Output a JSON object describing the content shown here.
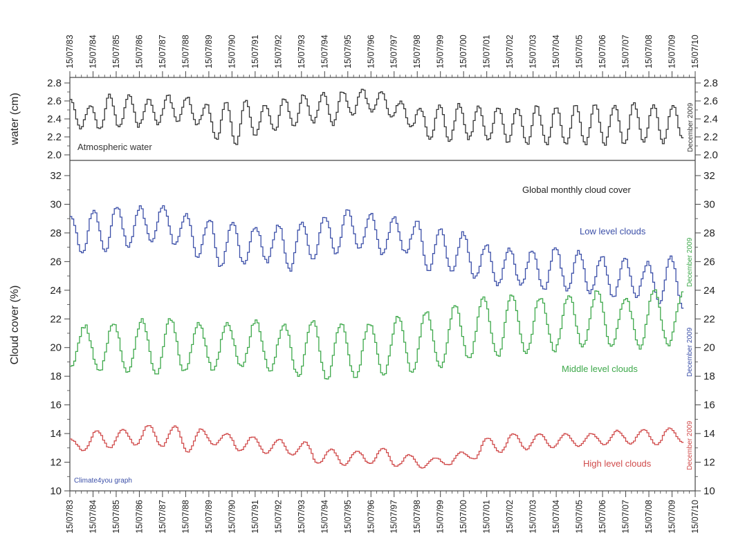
{
  "chart_data": [
    {
      "type": "line",
      "panel": "top",
      "ylabel": "water (cm)",
      "ylim": [
        2.0,
        2.8
      ],
      "yticks": [
        "2.0",
        "2.2",
        "2.4",
        "2.6",
        "2.8"
      ],
      "xlim": [
        "1983-07-15",
        "2010-07-15"
      ],
      "x_tick_labels": [
        "15/07/83",
        "15/07/84",
        "15/07/85",
        "15/07/86",
        "15/07/87",
        "15/07/88",
        "15/07/89",
        "15/07/90",
        "15/07/91",
        "15/07/92",
        "15/07/93",
        "15/07/94",
        "15/07/95",
        "15/07/96",
        "15/07/97",
        "15/07/98",
        "15/07/99",
        "15/07/00",
        "15/07/01",
        "15/07/02",
        "15/07/03",
        "15/07/04",
        "15/07/05",
        "15/07/06",
        "15/07/07",
        "15/07/08",
        "15/07/09",
        "15/07/10"
      ],
      "annotations": {
        "label": "Atmospheric water",
        "end_label": "December 2009"
      },
      "series": [
        {
          "name": "Atmospheric water",
          "color": "#333333",
          "x_start": "1983-07-15",
          "x_end": "2009-12-15",
          "anchors": [
            2.62,
            2.3,
            2.55,
            2.28,
            2.67,
            2.3,
            2.67,
            2.32,
            2.62,
            2.34,
            2.67,
            2.37,
            2.64,
            2.33,
            2.56,
            2.17,
            2.58,
            2.12,
            2.6,
            2.22,
            2.56,
            2.26,
            2.63,
            2.32,
            2.67,
            2.36,
            2.68,
            2.34,
            2.71,
            2.44,
            2.73,
            2.48,
            2.7,
            2.42,
            2.6,
            2.3,
            2.52,
            2.18,
            2.55,
            2.16,
            2.56,
            2.18,
            2.54,
            2.16,
            2.54,
            2.14,
            2.53,
            2.12,
            2.54,
            2.11,
            2.54,
            2.11,
            2.55,
            2.12,
            2.56,
            2.12,
            2.56,
            2.11,
            2.58,
            2.14,
            2.56,
            2.13,
            2.56,
            2.18
          ]
        }
      ]
    },
    {
      "type": "line",
      "panel": "bottom",
      "ylabel": "Cloud cover (%)",
      "ylim": [
        10,
        32
      ],
      "yticks": [
        "10",
        "12",
        "14",
        "16",
        "18",
        "20",
        "22",
        "24",
        "26",
        "28",
        "30",
        "32"
      ],
      "xlim": [
        "1983-07-15",
        "2010-07-15"
      ],
      "x_tick_labels": [
        "15/07/83",
        "15/07/84",
        "15/07/85",
        "15/07/86",
        "15/07/87",
        "15/07/88",
        "15/07/89",
        "15/07/90",
        "15/07/91",
        "15/07/92",
        "15/07/93",
        "15/07/94",
        "15/07/95",
        "15/07/96",
        "15/07/97",
        "15/07/98",
        "15/07/99",
        "15/07/00",
        "15/07/01",
        "15/07/02",
        "15/07/03",
        "15/07/04",
        "15/07/05",
        "15/07/06",
        "15/07/07",
        "15/07/08",
        "15/07/09",
        "15/07/10"
      ],
      "annotations": {
        "title": "Global monthly cloud cover",
        "credit": "Climate4you graph",
        "end_label_low": "December 2009",
        "end_label_middle": "December 2009",
        "end_label_high": "December 2009"
      },
      "series": [
        {
          "name": "Low level clouds",
          "color": "#3b4fa8",
          "x_start": "1983-07-15",
          "x_end": "2009-12-15",
          "anchors": [
            29.2,
            26.6,
            29.6,
            26.8,
            29.9,
            27.0,
            29.8,
            27.4,
            29.9,
            27.2,
            29.3,
            26.3,
            29.0,
            25.6,
            28.8,
            25.8,
            28.5,
            26.0,
            28.6,
            25.4,
            28.7,
            26.2,
            29.2,
            26.6,
            29.6,
            26.8,
            29.3,
            26.5,
            29.1,
            26.6,
            28.8,
            25.3,
            28.3,
            25.2,
            28.0,
            24.8,
            27.2,
            24.4,
            26.9,
            24.4,
            26.8,
            24.0,
            27.0,
            24.0,
            26.7,
            23.8,
            26.4,
            23.5,
            26.3,
            23.6,
            26.0,
            23.2,
            26.3,
            22.8
          ]
        },
        {
          "name": "Middle level clouds",
          "color": "#3da84a",
          "x_start": "1983-07-15",
          "x_end": "2009-12-15",
          "anchors": [
            18.7,
            21.5,
            18.3,
            21.7,
            18.2,
            21.9,
            18.1,
            22.0,
            18.3,
            21.7,
            18.4,
            21.8,
            18.6,
            21.9,
            18.4,
            21.6,
            18.0,
            21.9,
            17.8,
            21.7,
            17.9,
            21.7,
            18.1,
            22.1,
            18.3,
            22.5,
            18.6,
            22.9,
            19.2,
            23.4,
            19.4,
            23.6,
            19.6,
            23.5,
            19.8,
            23.6,
            20.1,
            24.0,
            20.1,
            23.5,
            20.0,
            24.0,
            20.2,
            23.8
          ]
        },
        {
          "name": "High level clouds",
          "color": "#d04a4a",
          "x_start": "1983-07-15",
          "x_end": "2009-12-15",
          "anchors": [
            13.6,
            12.8,
            14.2,
            13.0,
            14.3,
            13.2,
            14.6,
            13.1,
            14.5,
            12.7,
            14.3,
            13.2,
            14.0,
            12.8,
            13.8,
            12.6,
            13.6,
            12.5,
            13.4,
            11.9,
            12.9,
            11.8,
            12.8,
            11.9,
            13.0,
            11.7,
            12.5,
            11.6,
            12.3,
            11.8,
            12.7,
            12.2,
            13.7,
            12.7,
            14.0,
            12.9,
            14.0,
            13.0,
            14.0,
            13.1,
            14.0,
            13.2,
            14.2,
            13.3,
            14.3,
            13.2,
            14.4,
            13.4
          ]
        }
      ]
    }
  ]
}
